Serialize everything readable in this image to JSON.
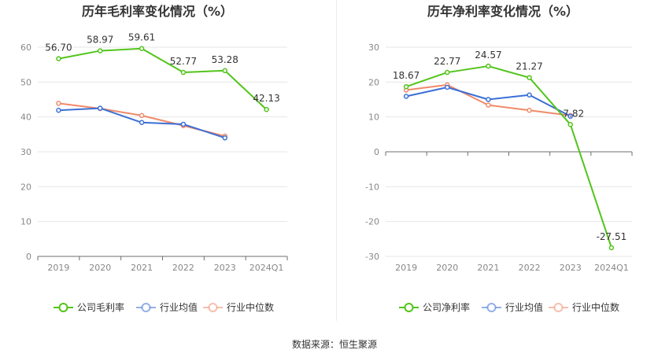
{
  "source_label": "数据来源：恒生聚源",
  "chart_data": [
    {
      "type": "line",
      "title": "历年毛利率变化情况（%）",
      "categories": [
        "2019",
        "2020",
        "2021",
        "2022",
        "2023",
        "2024Q1"
      ],
      "ylim": [
        0,
        60
      ],
      "yticks": [
        0,
        10,
        20,
        30,
        40,
        50,
        60
      ],
      "grid": true,
      "legend_position": "bottom",
      "series": [
        {
          "name": "公司毛利率",
          "color": "#52c41a",
          "values": [
            56.7,
            58.97,
            59.61,
            52.77,
            53.28,
            42.13
          ],
          "labels": [
            "56.70",
            "58.97",
            "59.61",
            "52.77",
            "53.28",
            "42.13"
          ]
        },
        {
          "name": "行业均值",
          "color": "#3b6fd6",
          "values": [
            41.9,
            42.5,
            38.4,
            37.9,
            34.0,
            null
          ]
        },
        {
          "name": "行业中位数",
          "color": "#f08a6a",
          "values": [
            43.9,
            42.4,
            40.4,
            37.5,
            34.5,
            null
          ]
        }
      ]
    },
    {
      "type": "line",
      "title": "历年净利率变化情况（%）",
      "categories": [
        "2019",
        "2020",
        "2021",
        "2022",
        "2023",
        "2024Q1"
      ],
      "ylim": [
        -30,
        30
      ],
      "yticks": [
        -30,
        -20,
        -10,
        0,
        10,
        20,
        30
      ],
      "grid": true,
      "legend_position": "bottom",
      "series": [
        {
          "name": "公司净利率",
          "color": "#52c41a",
          "values": [
            18.67,
            22.77,
            24.57,
            21.27,
            7.82,
            -27.51
          ],
          "labels": [
            "18.67",
            "22.77",
            "24.57",
            "21.27",
            "7.82",
            "-27.51"
          ]
        },
        {
          "name": "行业均值",
          "color": "#3b6fd6",
          "values": [
            15.9,
            18.5,
            15.0,
            16.3,
            10.2,
            null
          ]
        },
        {
          "name": "行业中位数",
          "color": "#f08a6a",
          "values": [
            17.7,
            19.2,
            13.4,
            11.9,
            10.4,
            null
          ]
        }
      ]
    }
  ]
}
